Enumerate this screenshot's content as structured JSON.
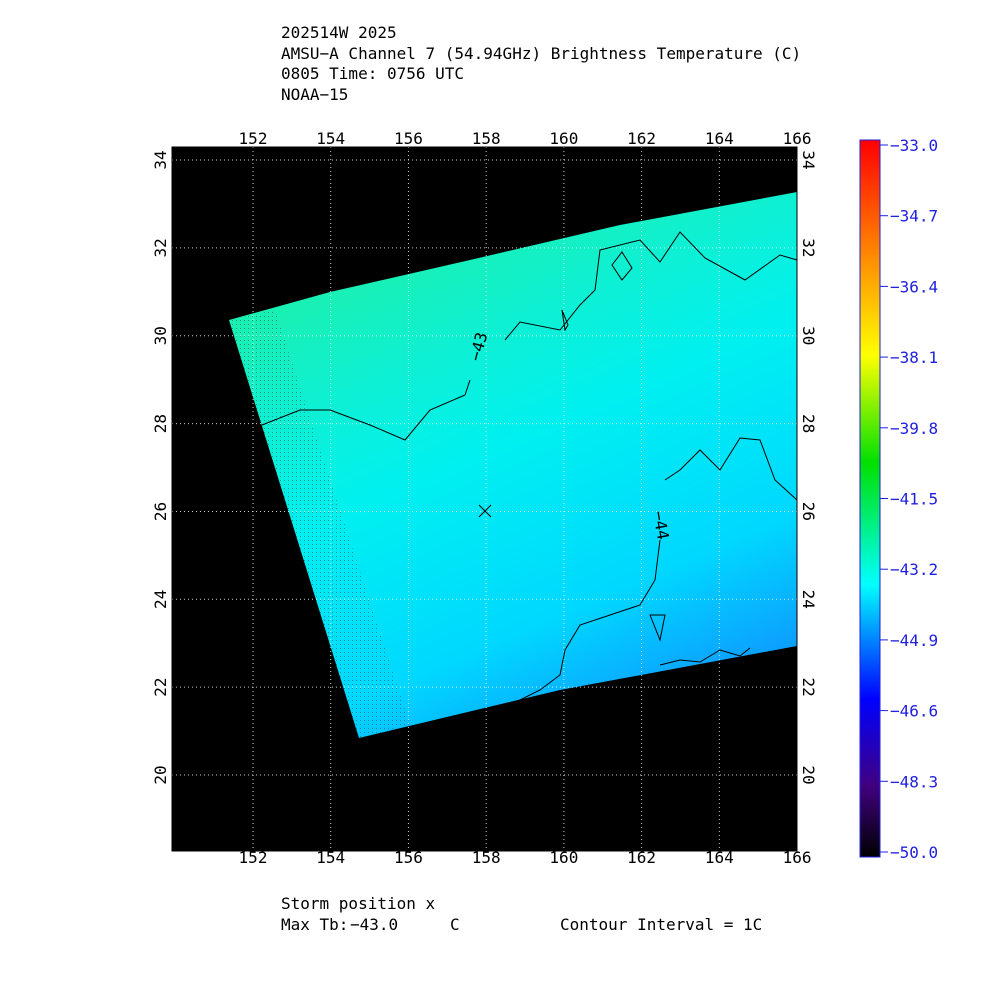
{
  "header": {
    "lines": [
      "202514W 2025",
      "AMSU−A Channel 7 (54.94GHz) Brightness Temperature (C)",
      "0805 Time: 0756 UTC",
      "NOAA−15"
    ]
  },
  "map": {
    "lon_ticks": [
      152,
      154,
      156,
      158,
      160,
      162,
      164,
      166
    ],
    "lat_ticks": [
      20,
      22,
      24,
      26,
      28,
      30,
      32,
      34
    ],
    "contour_labels": [
      "−43",
      "−44"
    ]
  },
  "colorbar": {
    "labels": [
      "−33.0",
      "−34.7",
      "−36.4",
      "−38.1",
      "−39.8",
      "−41.5",
      "−43.2",
      "−44.9",
      "−46.6",
      "−48.3",
      "−50.0"
    ]
  },
  "footer": {
    "storm": "Storm position x",
    "max_tb_label": "Max Tb:",
    "max_tb": "−43.0",
    "max_tb_unit": "C",
    "contour_interval": "Contour Interval = 1C"
  }
}
